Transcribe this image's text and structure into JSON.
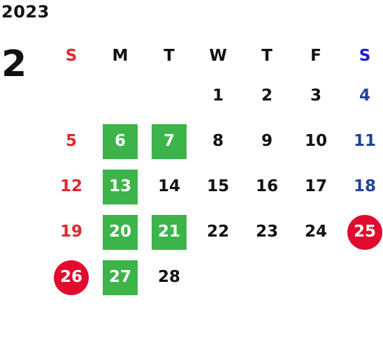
{
  "year": "2023",
  "month": "2",
  "weekdays": [
    "S",
    "M",
    "T",
    "W",
    "T",
    "F",
    "S"
  ],
  "colors": {
    "sunday": "#e0282e",
    "saturday": "#1f4398",
    "green_highlight": "#3cb44a",
    "red_highlight": "#e00b2f"
  },
  "weeks": [
    [
      null,
      null,
      null,
      {
        "d": "1"
      },
      {
        "d": "2"
      },
      {
        "d": "3"
      },
      {
        "d": "4"
      }
    ],
    [
      {
        "d": "5"
      },
      {
        "d": "6",
        "hl": "green"
      },
      {
        "d": "7",
        "hl": "green"
      },
      {
        "d": "8"
      },
      {
        "d": "9"
      },
      {
        "d": "10"
      },
      {
        "d": "11"
      }
    ],
    [
      {
        "d": "12"
      },
      {
        "d": "13",
        "hl": "green"
      },
      {
        "d": "14"
      },
      {
        "d": "15"
      },
      {
        "d": "16"
      },
      {
        "d": "17"
      },
      {
        "d": "18"
      }
    ],
    [
      {
        "d": "19"
      },
      {
        "d": "20",
        "hl": "green"
      },
      {
        "d": "21",
        "hl": "green"
      },
      {
        "d": "22"
      },
      {
        "d": "23"
      },
      {
        "d": "24"
      },
      {
        "d": "25",
        "hl": "red"
      }
    ],
    [
      {
        "d": "26",
        "hl": "red"
      },
      {
        "d": "27",
        "hl": "green"
      },
      {
        "d": "28"
      },
      null,
      null,
      null,
      null
    ]
  ]
}
